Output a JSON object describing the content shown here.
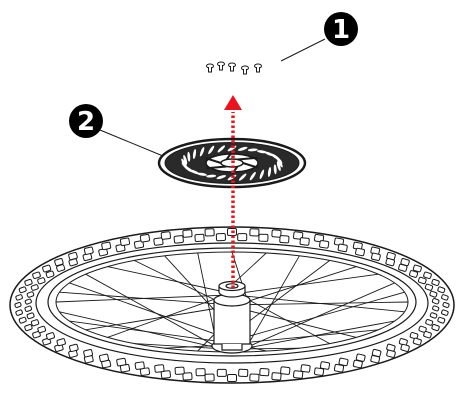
{
  "callouts": [
    {
      "label": "1",
      "part": "rotor-bolts"
    },
    {
      "label": "2",
      "part": "brake-rotor"
    }
  ],
  "colors": {
    "line": "#1a1a1a",
    "arrow": "#e8141e",
    "callout_fill": "#000000",
    "background": "#ffffff"
  },
  "icons": {
    "arrow": "dotted-up-arrow"
  }
}
